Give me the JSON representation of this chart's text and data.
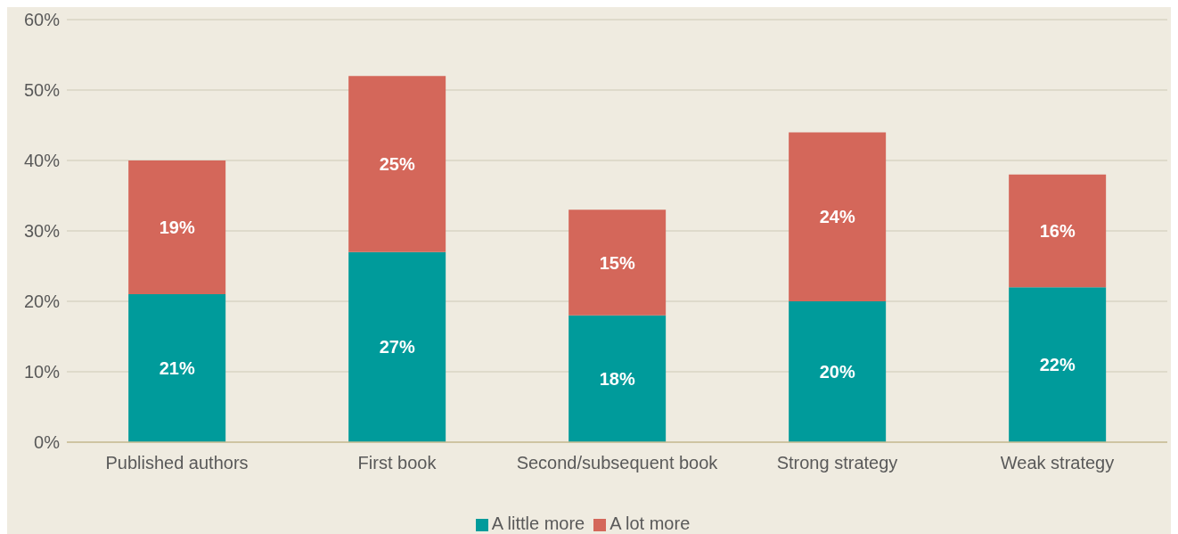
{
  "chart_data": {
    "type": "bar",
    "stacked": true,
    "categories": [
      "Published authors",
      "First book",
      "Second/subsequent book",
      "Strong strategy",
      "Weak strategy"
    ],
    "series": [
      {
        "name": "A little more",
        "color": "#009b9b",
        "values": [
          21,
          27,
          18,
          20,
          22
        ],
        "value_labels": [
          "21%",
          "27%",
          "18%",
          "20%",
          "22%"
        ]
      },
      {
        "name": "A lot more",
        "color": "#d4675a",
        "values": [
          19,
          25,
          15,
          24,
          16
        ],
        "value_labels": [
          "19%",
          "25%",
          "15%",
          "24%",
          "16%"
        ]
      }
    ],
    "ylim": [
      0,
      60
    ],
    "yticks": [
      {
        "value": 0,
        "label": "0%"
      },
      {
        "value": 10,
        "label": "10%"
      },
      {
        "value": 20,
        "label": "20%"
      },
      {
        "value": 30,
        "label": "30%"
      },
      {
        "value": 40,
        "label": "40%"
      },
      {
        "value": 50,
        "label": "50%"
      },
      {
        "value": 60,
        "label": "60%"
      }
    ],
    "grid": "y",
    "legend": "bottom"
  }
}
